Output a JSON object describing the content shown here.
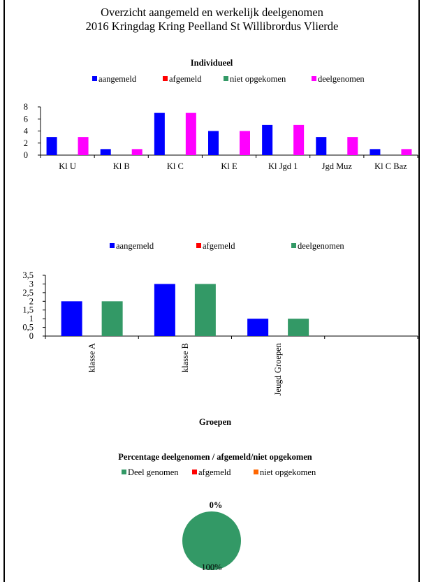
{
  "page": {
    "title_line1": "Overzicht aangemeld en werkelijk deelgenomen",
    "title_line2": "2016 Kringdag Kring Peelland St Willibrordus Vlierde"
  },
  "chart_data": [
    {
      "type": "bar",
      "title": "Individueel",
      "categories": [
        "Kl U",
        "Kl B",
        "Kl C",
        "Kl E",
        "Kl Jgd 1",
        "Jgd Muz",
        "Kl C Baz"
      ],
      "series": [
        {
          "name": "aangemeld",
          "color": "#0000FF",
          "values": [
            3,
            1,
            7,
            4,
            5,
            3,
            1
          ]
        },
        {
          "name": "afgemeld",
          "color": "#FF0000",
          "values": [
            0,
            0,
            0,
            0,
            0,
            0,
            0
          ]
        },
        {
          "name": "niet opgekomen",
          "color": "#339966",
          "values": [
            0,
            0,
            0,
            0,
            0,
            0,
            0
          ]
        },
        {
          "name": "deelgenomen",
          "color": "#FF00FF",
          "values": [
            3,
            1,
            7,
            4,
            5,
            3,
            1
          ]
        }
      ],
      "yticks": [
        "0",
        "2",
        "4",
        "6",
        "8"
      ],
      "ylim": [
        0,
        8
      ],
      "legend_position": "top"
    },
    {
      "type": "bar",
      "title": "",
      "xlabel": "Groepen",
      "categories": [
        "klasse A",
        "klasse B",
        "Jeugd Groepen",
        ""
      ],
      "series": [
        {
          "name": "aangemeld",
          "color": "#0000FF",
          "values": [
            2,
            3,
            1,
            0
          ]
        },
        {
          "name": "afgemeld",
          "color": "#FF0000",
          "values": [
            0,
            0,
            0,
            0
          ]
        },
        {
          "name": "deelgenomen",
          "color": "#339966",
          "values": [
            2,
            3,
            1,
            0
          ]
        }
      ],
      "yticks": [
        "0",
        "0,5",
        "1",
        "1,5",
        "2",
        "2,5",
        "3",
        "3,5"
      ],
      "ylim": [
        0,
        3.5
      ],
      "legend_position": "top"
    },
    {
      "type": "pie",
      "title": "Percentage deelgenomen / afgemeld/niet opgekomen",
      "slices": [
        {
          "name": "Deel genomen",
          "color": "#339966",
          "value": 100,
          "label": "100%"
        },
        {
          "name": "afgemeld",
          "color": "#FF0000",
          "value": 0,
          "label": ""
        },
        {
          "name": "niet opgekomen",
          "color": "#FF6600",
          "value": 0,
          "label": "0%"
        }
      ],
      "legend_position": "top"
    }
  ]
}
